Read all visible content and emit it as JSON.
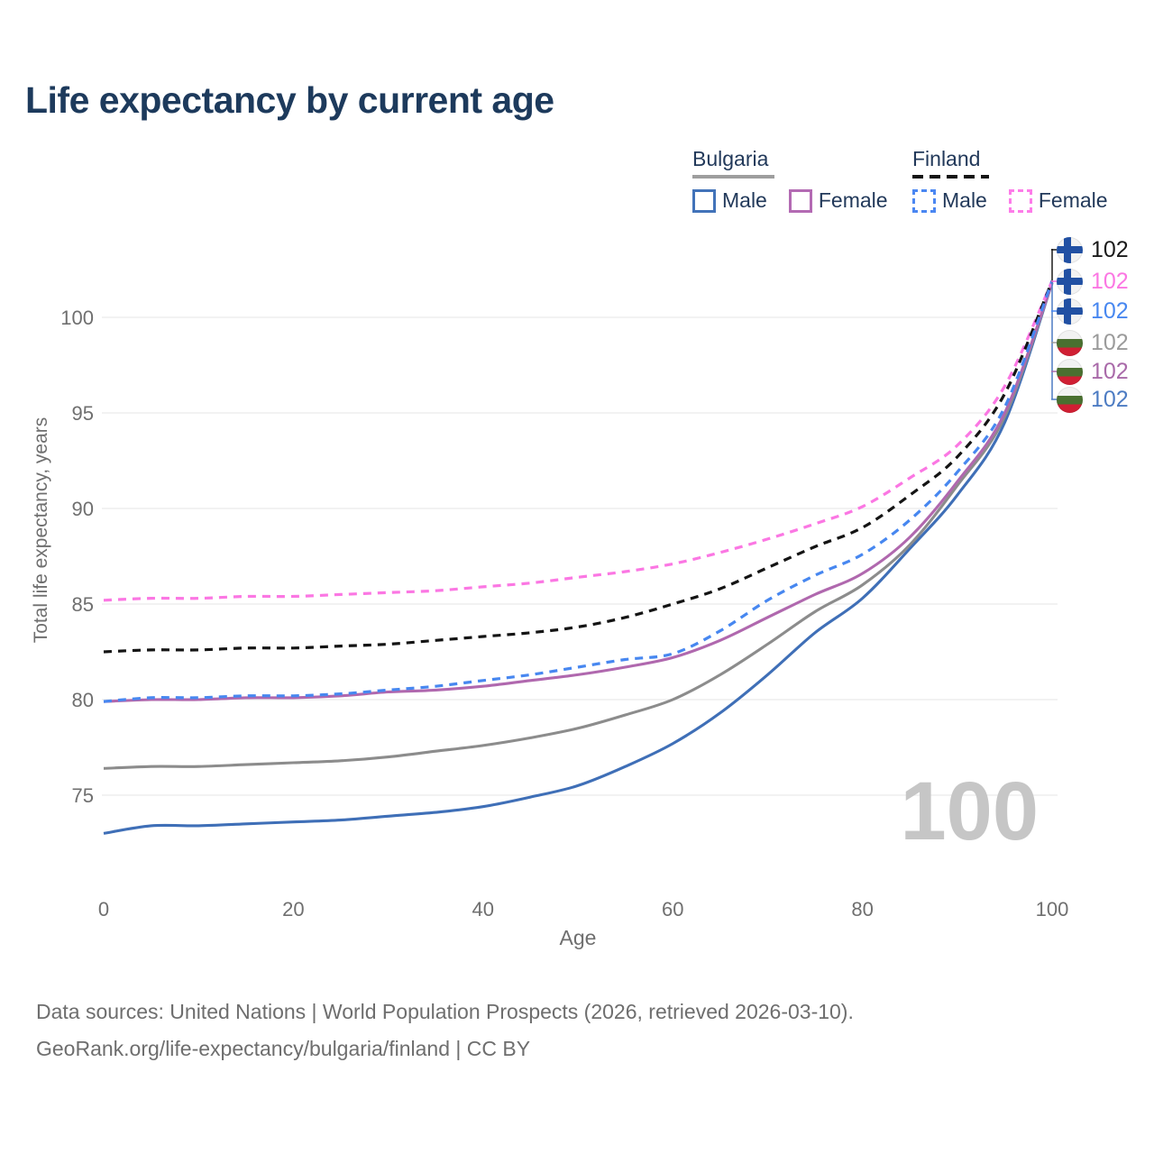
{
  "title": "Life expectancy by current age",
  "legend": {
    "bulgaria": {
      "label": "Bulgaria",
      "male": "Male",
      "female": "Female"
    },
    "finland": {
      "label": "Finland",
      "male": "Male",
      "female": "Female"
    }
  },
  "axes": {
    "y_label": "Total life expectancy, years",
    "x_label": "Age",
    "y_ticks": [
      75,
      80,
      85,
      90,
      95,
      100
    ],
    "x_ticks": [
      0,
      20,
      40,
      60,
      80,
      100
    ]
  },
  "hover_age": "100",
  "endpoint_labels": [
    {
      "flag": "finland",
      "series": "finland_total",
      "value": "102",
      "color": "#1a1a1a"
    },
    {
      "flag": "finland",
      "series": "finland_female",
      "value": "102",
      "color": "#fb77e3"
    },
    {
      "flag": "finland",
      "series": "finland_male",
      "value": "102",
      "color": "#4787f0"
    },
    {
      "flag": "bulgaria",
      "series": "bulgaria_total",
      "value": "102",
      "color": "#9b9b9b"
    },
    {
      "flag": "bulgaria",
      "series": "bulgaria_female",
      "value": "102",
      "color": "#a96aa9"
    },
    {
      "flag": "bulgaria",
      "series": "bulgaria_male",
      "value": "102",
      "color": "#4d7cc3"
    }
  ],
  "footer": {
    "line1": "Data sources: United Nations | World Population Prospects (2026, retrieved 2026-03-10).",
    "line2": "GeoRank.org/life-expectancy/bulgaria/finland | CC BY"
  },
  "colors": {
    "title": "#1d3a5c",
    "legend_text": "#22395a",
    "axis_text": "#6f6f6f",
    "grid": "#ededed",
    "watermark": "#c6c6c6",
    "footer_text": "#6e6e6e",
    "bulgaria_male": "#3f6fb7",
    "bulgaria_female": "#b068ae",
    "bulgaria_total": "#8c8c8c",
    "finland_male": "#4787f0",
    "finland_female": "#fb77e3",
    "finland_total": "#141414"
  },
  "chart_data": {
    "type": "line",
    "title": "Life expectancy by current age",
    "xlabel": "Age",
    "ylabel": "Total life expectancy, years",
    "xlim": [
      0,
      100
    ],
    "ylim_displayed": [
      73,
      102
    ],
    "grid": "horizontal",
    "legend_position": "top-right",
    "x": [
      0,
      5,
      10,
      15,
      20,
      25,
      30,
      35,
      40,
      45,
      50,
      55,
      60,
      65,
      70,
      75,
      80,
      85,
      90,
      95,
      100
    ],
    "series": [
      {
        "id": "bulgaria_male",
        "name": "Bulgaria Male",
        "country": "Bulgaria",
        "sex": "male",
        "style": "solid",
        "color": "#3f6fb7",
        "values": [
          73.0,
          73.4,
          73.4,
          73.5,
          73.6,
          73.7,
          73.9,
          74.1,
          74.4,
          74.9,
          75.5,
          76.5,
          77.7,
          79.3,
          81.3,
          83.5,
          85.3,
          87.9,
          90.7,
          94.5,
          101.8
        ]
      },
      {
        "id": "bulgaria_total",
        "name": "Bulgaria",
        "country": "Bulgaria",
        "sex": "both",
        "style": "solid",
        "color": "#8c8c8c",
        "values": [
          76.4,
          76.5,
          76.5,
          76.6,
          76.7,
          76.8,
          77.0,
          77.3,
          77.6,
          78.0,
          78.5,
          79.2,
          80.0,
          81.3,
          82.9,
          84.6,
          86.0,
          88.1,
          91.2,
          94.8,
          101.8
        ]
      },
      {
        "id": "bulgaria_female",
        "name": "Bulgaria Female",
        "country": "Bulgaria",
        "sex": "female",
        "style": "solid",
        "color": "#b068ae",
        "values": [
          79.9,
          80.0,
          80.0,
          80.1,
          80.1,
          80.2,
          80.4,
          80.5,
          80.7,
          81.0,
          81.3,
          81.7,
          82.2,
          83.1,
          84.3,
          85.5,
          86.6,
          88.5,
          91.4,
          95.0,
          101.8
        ]
      },
      {
        "id": "finland_male",
        "name": "Finland Male",
        "country": "Finland",
        "sex": "male",
        "style": "dashed",
        "color": "#4787f0",
        "values": [
          79.9,
          80.1,
          80.1,
          80.2,
          80.2,
          80.3,
          80.5,
          80.7,
          81.0,
          81.3,
          81.7,
          82.1,
          82.4,
          83.6,
          85.2,
          86.5,
          87.6,
          89.4,
          91.9,
          95.3,
          101.9
        ]
      },
      {
        "id": "finland_total",
        "name": "Finland",
        "country": "Finland",
        "sex": "both",
        "style": "dashed",
        "color": "#141414",
        "values": [
          82.5,
          82.6,
          82.6,
          82.7,
          82.7,
          82.8,
          82.9,
          83.1,
          83.3,
          83.5,
          83.8,
          84.3,
          85.0,
          85.8,
          86.9,
          88.0,
          89.0,
          90.7,
          92.7,
          96.0,
          101.9
        ]
      },
      {
        "id": "finland_female",
        "name": "Finland Female",
        "country": "Finland",
        "sex": "female",
        "style": "dashed",
        "color": "#fb77e3",
        "values": [
          85.2,
          85.3,
          85.3,
          85.4,
          85.4,
          85.5,
          85.6,
          85.7,
          85.9,
          86.1,
          86.4,
          86.7,
          87.1,
          87.7,
          88.4,
          89.2,
          90.1,
          91.6,
          93.3,
          96.4,
          101.9
        ]
      }
    ]
  }
}
